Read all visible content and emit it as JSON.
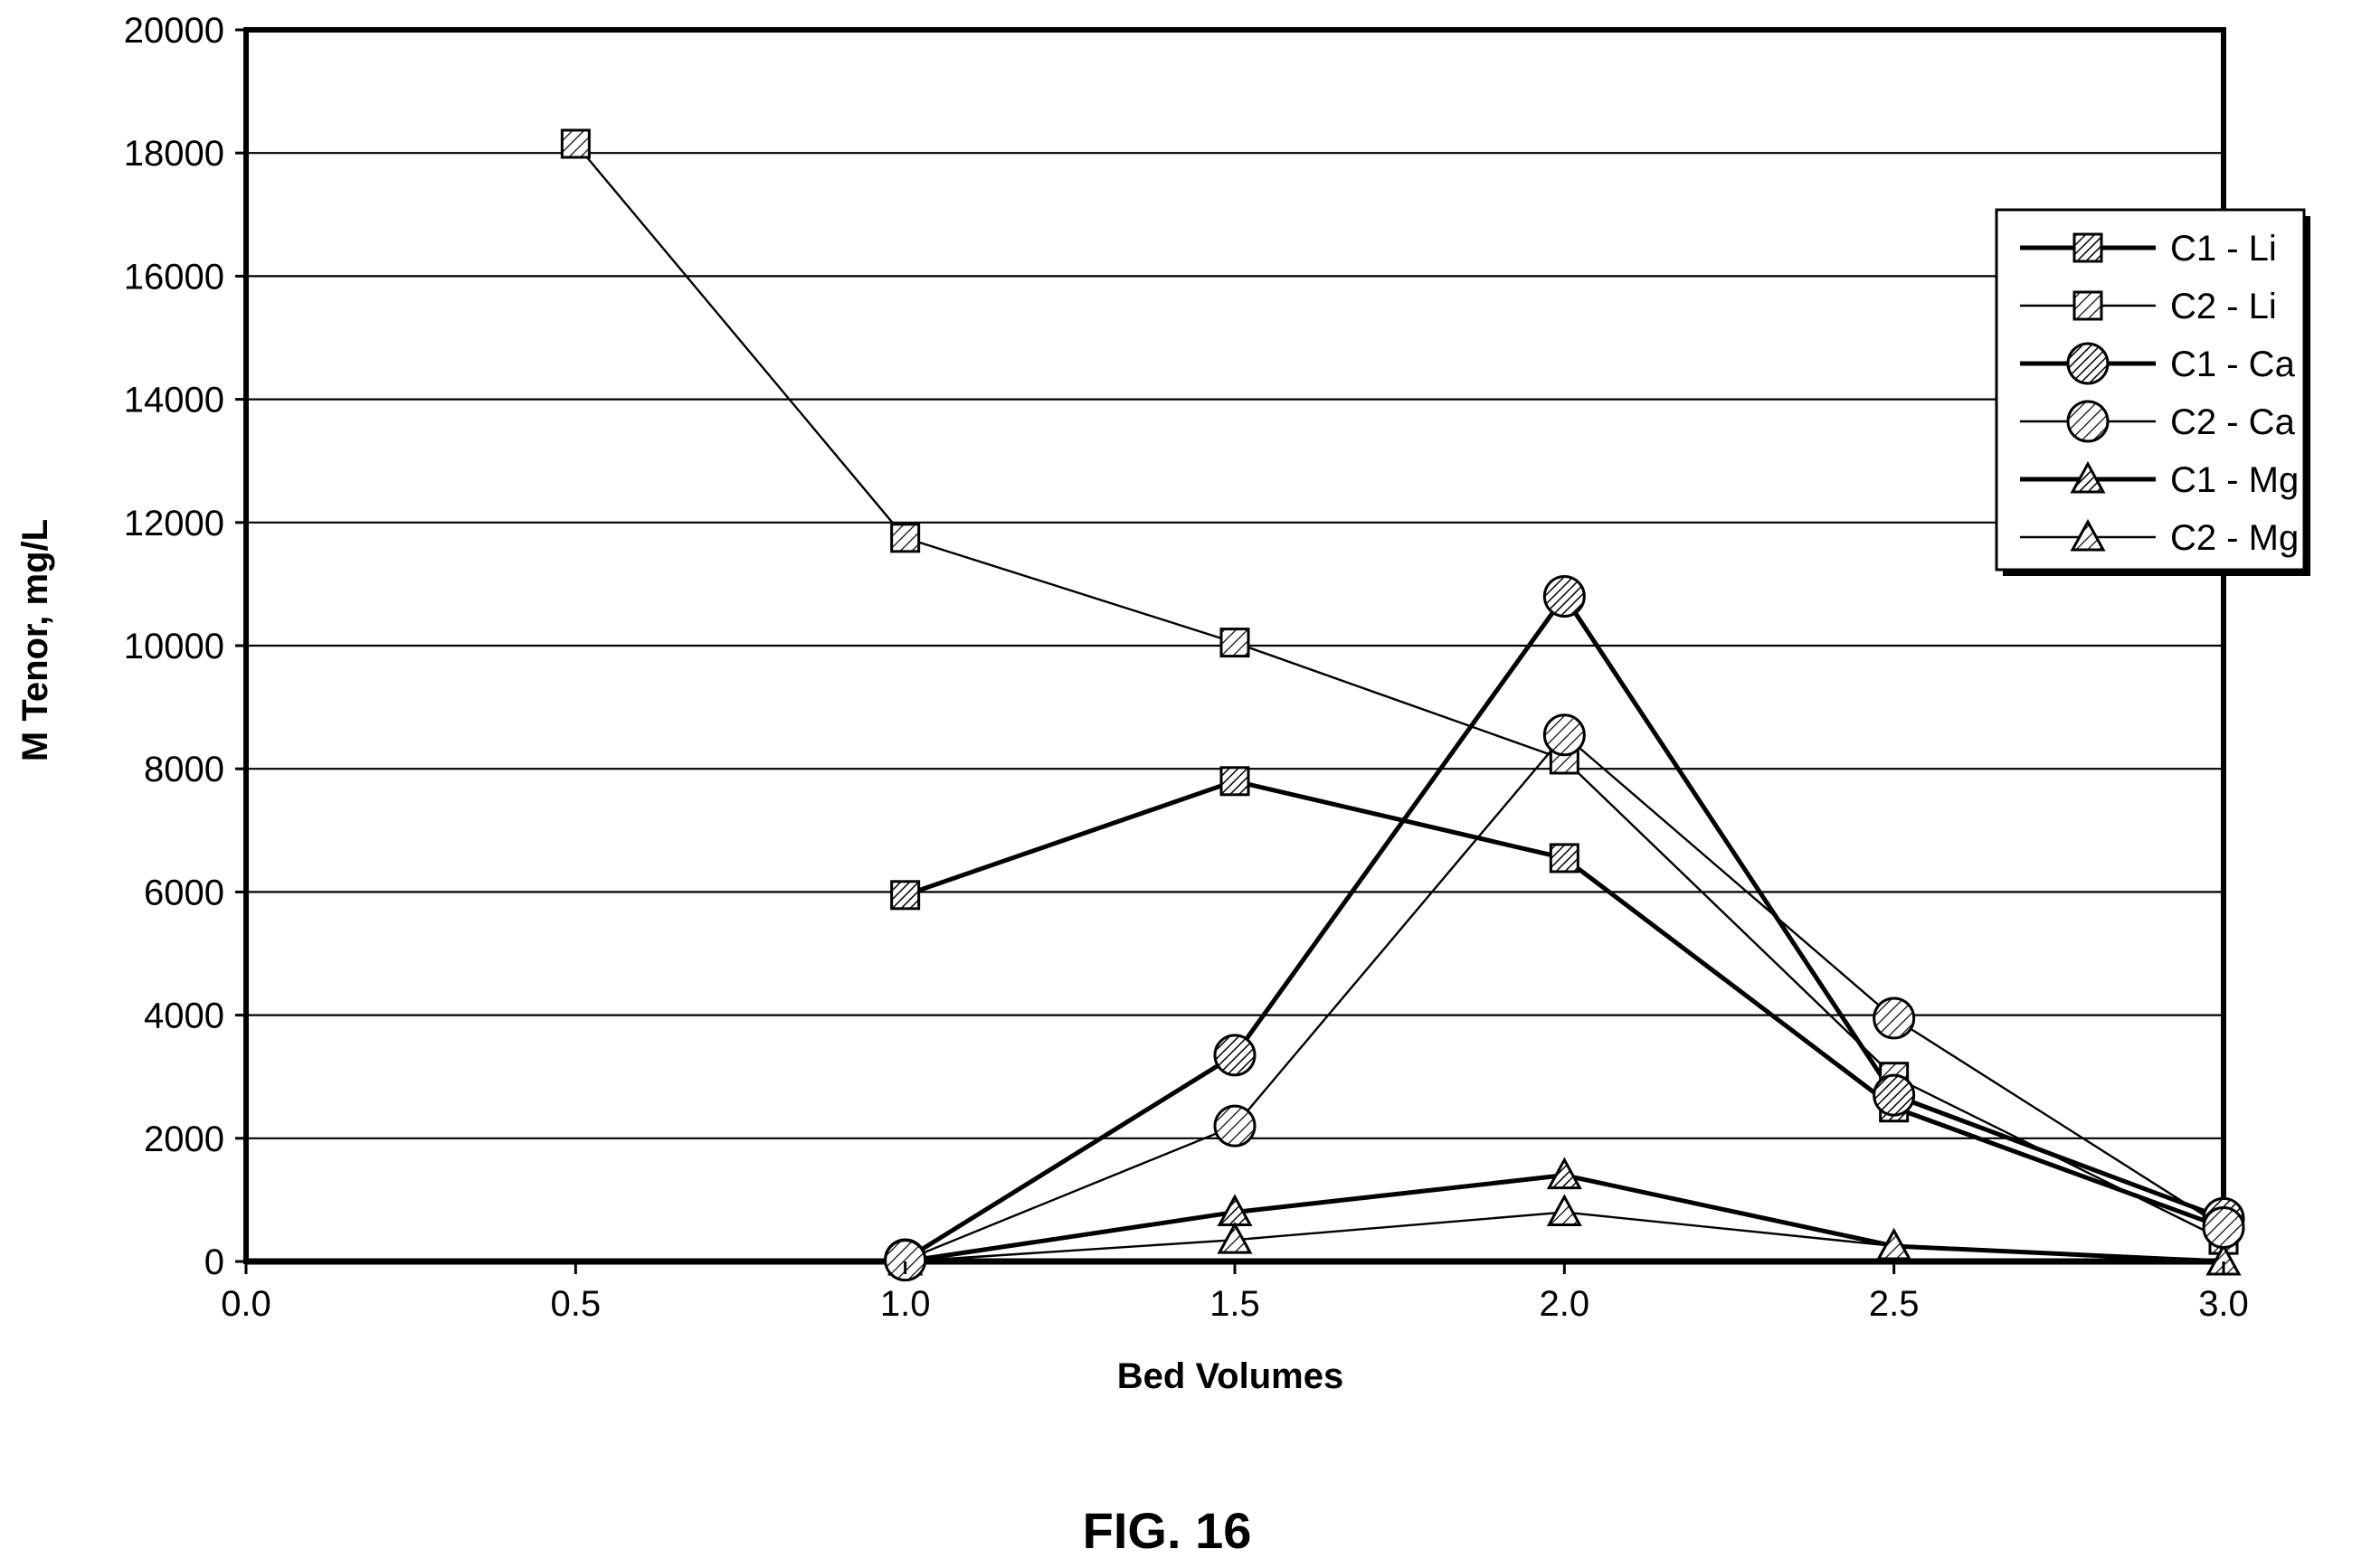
{
  "figure_label": "FIG. 16",
  "chart_data": {
    "type": "line",
    "xlabel": "Bed Volumes",
    "ylabel": "M Tenor, mg/L",
    "xlim": [
      0,
      3
    ],
    "ylim": [
      0,
      20000
    ],
    "xticks": [
      0,
      0.5,
      1,
      1.5,
      2,
      2.5,
      3
    ],
    "xtick_labels": [
      "0.0",
      "0.5",
      "1.0",
      "1.5",
      "2.0",
      "2.5",
      "3.0"
    ],
    "yticks": [
      0,
      2000,
      4000,
      6000,
      8000,
      10000,
      12000,
      14000,
      16000,
      18000,
      20000
    ],
    "ytick_labels": [
      "0",
      "2000",
      "4000",
      "6000",
      "8000",
      "10000",
      "12000",
      "14000",
      "16000",
      "18000",
      "20000"
    ],
    "grid": "horizontal",
    "legend_position": "top-right",
    "series": [
      {
        "name": "C1 - Li",
        "marker": "square",
        "weight": "thick",
        "hatch": "dense",
        "points": [
          [
            1.0,
            5950
          ],
          [
            1.5,
            7800
          ],
          [
            2.0,
            6550
          ],
          [
            2.5,
            2500
          ],
          [
            3.0,
            550
          ]
        ]
      },
      {
        "name": "C2 - Li",
        "marker": "square",
        "weight": "thin",
        "hatch": "sparse",
        "points": [
          [
            0.5,
            18150
          ],
          [
            1.0,
            11750
          ],
          [
            1.5,
            10050
          ],
          [
            2.0,
            8150
          ],
          [
            2.5,
            3000
          ],
          [
            3.0,
            350
          ]
        ]
      },
      {
        "name": "C1 - Ca",
        "marker": "circle",
        "weight": "thick",
        "hatch": "dense",
        "points": [
          [
            1.0,
            30
          ],
          [
            1.5,
            3350
          ],
          [
            2.0,
            10800
          ],
          [
            2.5,
            2700
          ],
          [
            3.0,
            700
          ]
        ]
      },
      {
        "name": "C2 - Ca",
        "marker": "circle",
        "weight": "thin",
        "hatch": "sparse",
        "points": [
          [
            1.0,
            20
          ],
          [
            1.5,
            2200
          ],
          [
            2.0,
            8550
          ],
          [
            2.5,
            3950
          ],
          [
            3.0,
            550
          ]
        ]
      },
      {
        "name": "C1 - Mg",
        "marker": "triangle",
        "weight": "thick",
        "hatch": "dense",
        "points": [
          [
            1.0,
            0
          ],
          [
            1.5,
            800
          ],
          [
            2.0,
            1400
          ],
          [
            2.5,
            250
          ],
          [
            3.0,
            0
          ]
        ]
      },
      {
        "name": "C2 - Mg",
        "marker": "triangle",
        "weight": "thin",
        "hatch": "sparse",
        "points": [
          [
            1.0,
            0
          ],
          [
            1.5,
            350
          ],
          [
            2.0,
            800
          ],
          [
            2.5,
            250
          ],
          [
            3.0,
            0
          ]
        ]
      }
    ]
  }
}
